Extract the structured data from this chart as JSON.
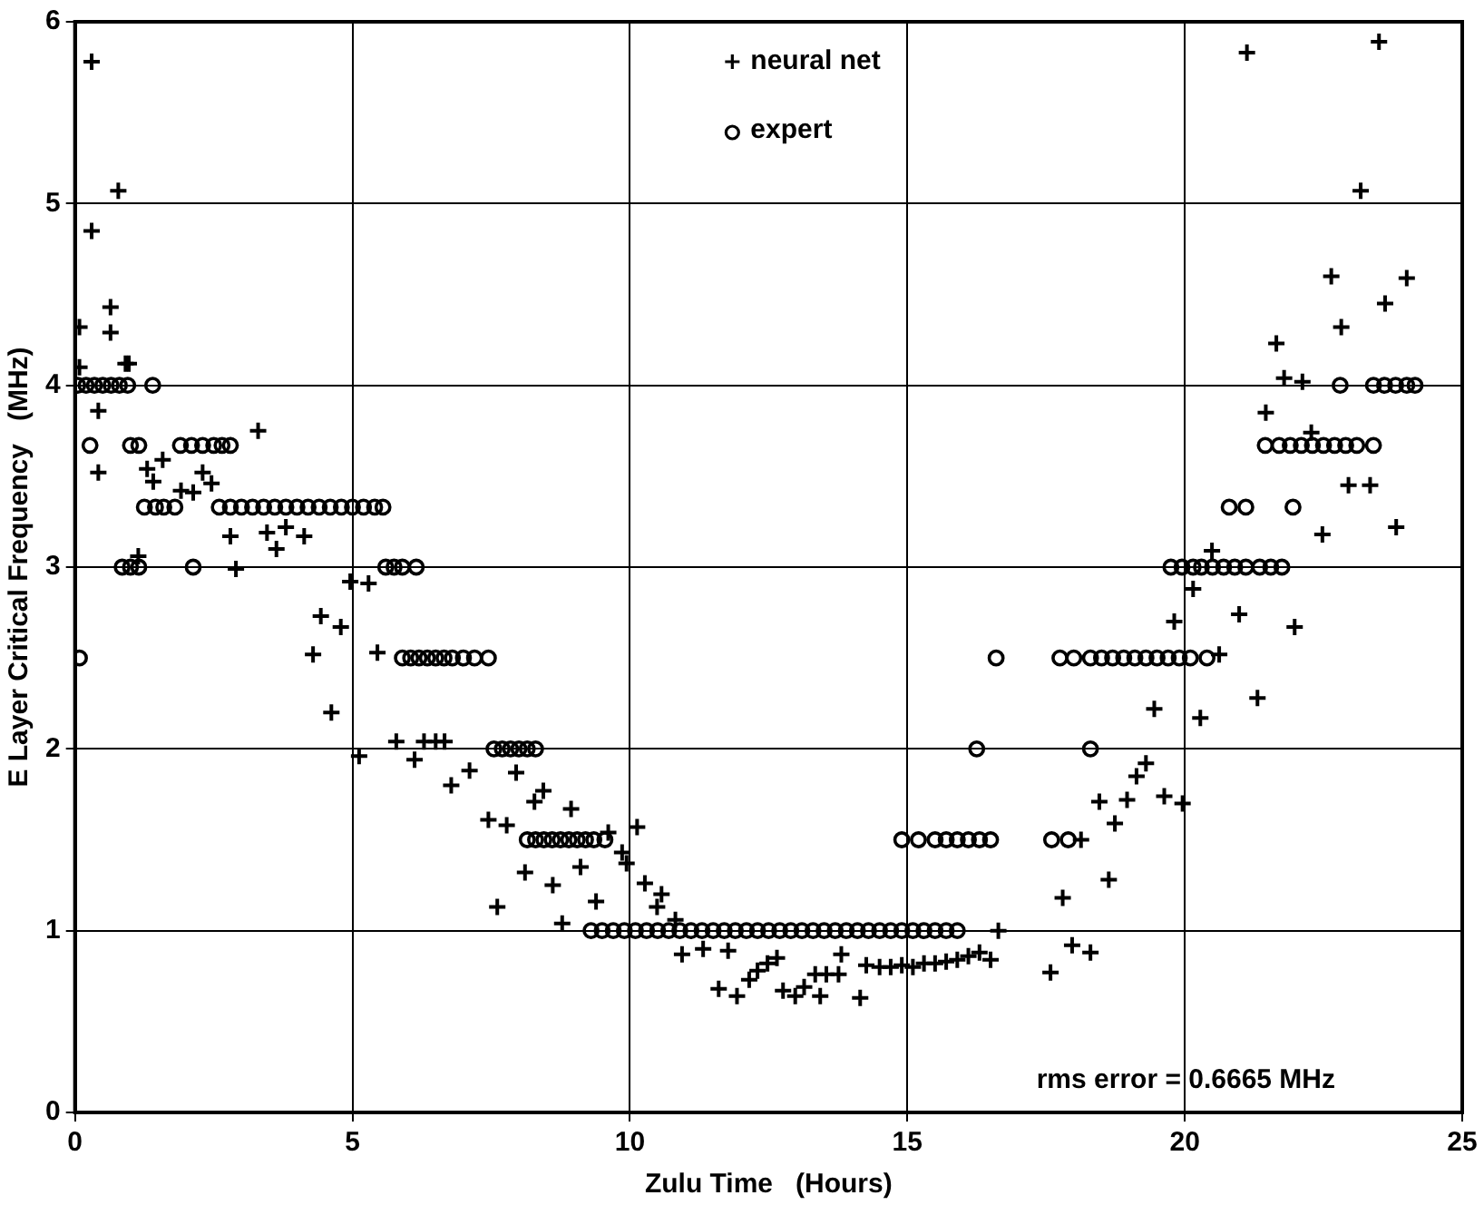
{
  "chart_data": {
    "type": "scatter",
    "xlabel": "Zulu Time   (Hours)",
    "ylabel": "E Layer Critical Frequency   (MHz)",
    "xlim": [
      0,
      25
    ],
    "xticks": [
      0,
      5,
      10,
      15,
      20,
      25
    ],
    "ylim": [
      0,
      6
    ],
    "yticks": [
      0,
      1,
      2,
      3,
      4,
      5,
      6
    ],
    "grid": true,
    "legend": "top",
    "annotations": [
      "rms error = 0.6665 MHz"
    ],
    "series": [
      {
        "name": "neural net",
        "color": "#000000",
        "marker": "cross",
        "x": [
          0.3,
          0.78,
          0.3,
          0.64,
          0.08,
          0.64,
          0.08,
          0.91,
          0.97,
          0.42,
          0.42,
          1.3,
          1.58,
          1.41,
          1.91,
          2.13,
          2.3,
          2.46,
          3.3,
          2.8,
          3.46,
          3.63,
          3.8,
          4.13,
          1.14,
          2.9,
          4.96,
          5.29,
          4.43,
          4.79,
          4.29,
          5.45,
          4.62,
          5.12,
          5.79,
          6.12,
          6.29,
          6.5,
          6.66,
          6.78,
          7.11,
          7.45,
          7.78,
          7.95,
          8.44,
          8.28,
          8.94,
          8.11,
          8.61,
          7.61,
          9.11,
          9.39,
          8.78,
          9.61,
          9.86,
          9.94,
          10.13,
          10.27,
          10.57,
          10.49,
          10.82,
          10.94,
          11.32,
          11.77,
          11.6,
          11.93,
          12.15,
          12.3,
          12.48,
          12.65,
          12.76,
          12.98,
          13.14,
          13.34,
          13.54,
          13.76,
          13.43,
          13.81,
          14.15,
          14.26,
          14.5,
          14.7,
          14.9,
          15.1,
          15.3,
          15.5,
          15.7,
          15.9,
          16.1,
          16.3,
          16.5,
          16.64,
          20.49,
          20.15,
          19.81,
          20.62,
          19.45,
          20.28,
          19.3,
          19.13,
          18.96,
          18.46,
          18.74,
          19.63,
          19.96,
          18.13,
          18.63,
          17.8,
          17.97,
          18.3,
          17.58,
          21.12,
          23.5,
          23.17,
          22.64,
          24.0,
          23.61,
          22.82,
          21.65,
          21.79,
          22.12,
          21.46,
          22.28,
          22.95,
          23.34,
          22.48,
          23.81,
          20.98,
          21.98,
          21.31
        ],
        "values": [
          5.78,
          5.07,
          4.85,
          4.43,
          4.32,
          4.29,
          4.1,
          4.12,
          4.12,
          3.86,
          3.52,
          3.54,
          3.59,
          3.47,
          3.42,
          3.41,
          3.52,
          3.46,
          3.75,
          3.17,
          3.19,
          3.1,
          3.22,
          3.17,
          3.06,
          2.99,
          2.92,
          2.91,
          2.73,
          2.67,
          2.52,
          2.53,
          2.2,
          1.96,
          2.04,
          1.94,
          2.04,
          2.04,
          2.04,
          1.8,
          1.88,
          1.61,
          1.58,
          1.87,
          1.77,
          1.71,
          1.67,
          1.32,
          1.25,
          1.13,
          1.35,
          1.16,
          1.04,
          1.54,
          1.43,
          1.37,
          1.57,
          1.26,
          1.2,
          1.13,
          1.06,
          0.87,
          0.9,
          0.89,
          0.68,
          0.64,
          0.73,
          0.78,
          0.82,
          0.85,
          0.67,
          0.64,
          0.69,
          0.76,
          0.76,
          0.76,
          0.64,
          0.87,
          0.63,
          0.81,
          0.8,
          0.8,
          0.81,
          0.8,
          0.82,
          0.82,
          0.83,
          0.84,
          0.86,
          0.88,
          0.84,
          1.0,
          3.09,
          2.88,
          2.7,
          2.52,
          2.22,
          2.17,
          1.92,
          1.85,
          1.72,
          1.71,
          1.59,
          1.74,
          1.7,
          1.5,
          1.28,
          1.18,
          0.92,
          0.88,
          0.77,
          5.83,
          5.89,
          5.07,
          4.6,
          4.59,
          4.45,
          4.32,
          4.23,
          4.04,
          4.02,
          3.85,
          3.74,
          3.45,
          3.45,
          3.18,
          3.22,
          2.74,
          2.67,
          2.28
        ]
      },
      {
        "name": "expert",
        "color": "#000000",
        "marker": "circle",
        "x": [
          0.08,
          0.05,
          0.2,
          0.35,
          0.5,
          0.65,
          0.8,
          0.95,
          1.4,
          0.27,
          1.0,
          1.15,
          1.9,
          2.1,
          2.3,
          2.5,
          2.65,
          2.8,
          1.25,
          1.45,
          1.6,
          1.8,
          2.6,
          2.8,
          3.0,
          3.2,
          3.4,
          3.6,
          3.8,
          4.0,
          4.2,
          4.4,
          4.6,
          4.8,
          5.0,
          5.2,
          5.4,
          5.55,
          0.85,
          1.0,
          1.15,
          2.13,
          5.6,
          5.75,
          5.9,
          6.15,
          5.9,
          6.05,
          6.2,
          6.35,
          6.5,
          6.65,
          6.8,
          7.0,
          7.2,
          7.45,
          7.55,
          7.7,
          7.85,
          8.0,
          8.15,
          8.3,
          8.15,
          8.3,
          8.45,
          8.6,
          8.75,
          8.9,
          9.05,
          9.2,
          9.35,
          9.55,
          9.3,
          9.5,
          9.7,
          9.9,
          10.1,
          10.3,
          10.5,
          10.7,
          10.9,
          11.1,
          11.3,
          11.5,
          11.7,
          11.9,
          12.1,
          12.3,
          12.5,
          12.7,
          12.9,
          13.1,
          13.3,
          13.5,
          13.7,
          13.9,
          14.1,
          14.3,
          14.5,
          14.7,
          14.9,
          15.1,
          15.3,
          15.5,
          15.7,
          15.9,
          14.9,
          15.2,
          15.5,
          15.7,
          15.9,
          16.1,
          16.3,
          16.5,
          16.25,
          16.6,
          17.6,
          17.9,
          18.3,
          17.75,
          18.0,
          18.3,
          18.5,
          18.7,
          18.9,
          19.1,
          19.3,
          19.5,
          19.7,
          19.9,
          20.1,
          20.4,
          19.75,
          19.95,
          20.15,
          20.3,
          20.5,
          20.7,
          20.9,
          21.1,
          21.35,
          21.55,
          21.75,
          20.8,
          21.1,
          21.95,
          21.45,
          21.7,
          21.9,
          22.1,
          22.3,
          22.5,
          22.7,
          22.9,
          23.1,
          23.4,
          22.8,
          23.4,
          23.6,
          23.8,
          24.0,
          24.15
        ],
        "values": [
          2.5,
          4,
          4,
          4,
          4,
          4,
          4,
          4,
          4,
          3.67,
          3.67,
          3.67,
          3.67,
          3.67,
          3.67,
          3.67,
          3.67,
          3.67,
          3.33,
          3.33,
          3.33,
          3.33,
          3.33,
          3.33,
          3.33,
          3.33,
          3.33,
          3.33,
          3.33,
          3.33,
          3.33,
          3.33,
          3.33,
          3.33,
          3.33,
          3.33,
          3.33,
          3.33,
          3,
          3,
          3,
          3,
          3,
          3,
          3,
          3,
          2.5,
          2.5,
          2.5,
          2.5,
          2.5,
          2.5,
          2.5,
          2.5,
          2.5,
          2.5,
          2,
          2,
          2,
          2,
          2,
          2,
          1.5,
          1.5,
          1.5,
          1.5,
          1.5,
          1.5,
          1.5,
          1.5,
          1.5,
          1.5,
          1,
          1,
          1,
          1,
          1,
          1,
          1,
          1,
          1,
          1,
          1,
          1,
          1,
          1,
          1,
          1,
          1,
          1,
          1,
          1,
          1,
          1,
          1,
          1,
          1,
          1,
          1,
          1,
          1,
          1,
          1,
          1,
          1,
          1,
          1.5,
          1.5,
          1.5,
          1.5,
          1.5,
          1.5,
          1.5,
          1.5,
          2,
          2.5,
          1.5,
          1.5,
          2,
          2.5,
          2.5,
          2.5,
          2.5,
          2.5,
          2.5,
          2.5,
          2.5,
          2.5,
          2.5,
          2.5,
          2.5,
          2.5,
          3,
          3,
          3,
          3,
          3,
          3,
          3,
          3,
          3,
          3,
          3,
          3.33,
          3.33,
          3.33,
          3.67,
          3.67,
          3.67,
          3.67,
          3.67,
          3.67,
          3.67,
          3.67,
          3.67,
          3.67,
          4,
          4,
          4,
          4,
          4,
          4
        ]
      }
    ]
  }
}
